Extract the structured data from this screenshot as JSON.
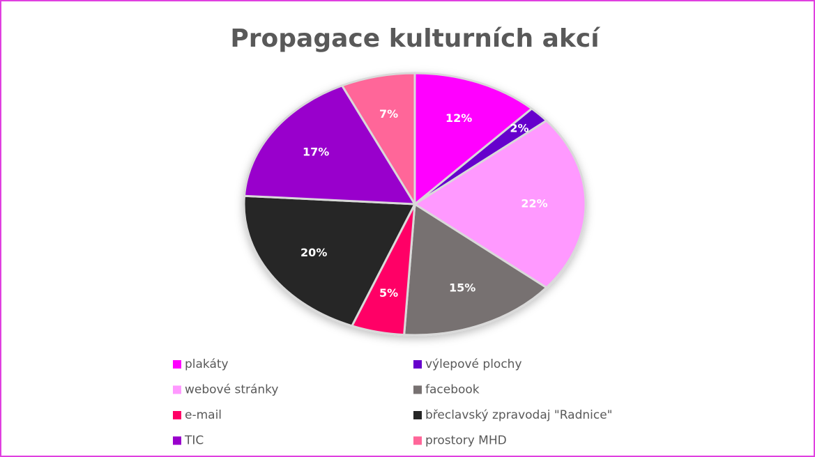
{
  "chart_data": {
    "type": "pie",
    "title": "Propagace kulturních akcí",
    "categories": [
      "plakáty",
      "výlepové plochy",
      "webové stránky",
      "facebook",
      "e-mail",
      "břeclavský zpravodaj \"Radnice\"",
      "TIC",
      "prostory MHD"
    ],
    "values": [
      12,
      2,
      22,
      15,
      5,
      20,
      17,
      7
    ],
    "value_labels": [
      "12%",
      "2%",
      "22%",
      "15%",
      "5%",
      "20%",
      "17%",
      "7%"
    ],
    "colors": [
      "#ff00ff",
      "#6600cc",
      "#ff99ff",
      "#777171",
      "#ff0066",
      "#262626",
      "#9900cc",
      "#ff6699"
    ],
    "legend": "bottom"
  }
}
